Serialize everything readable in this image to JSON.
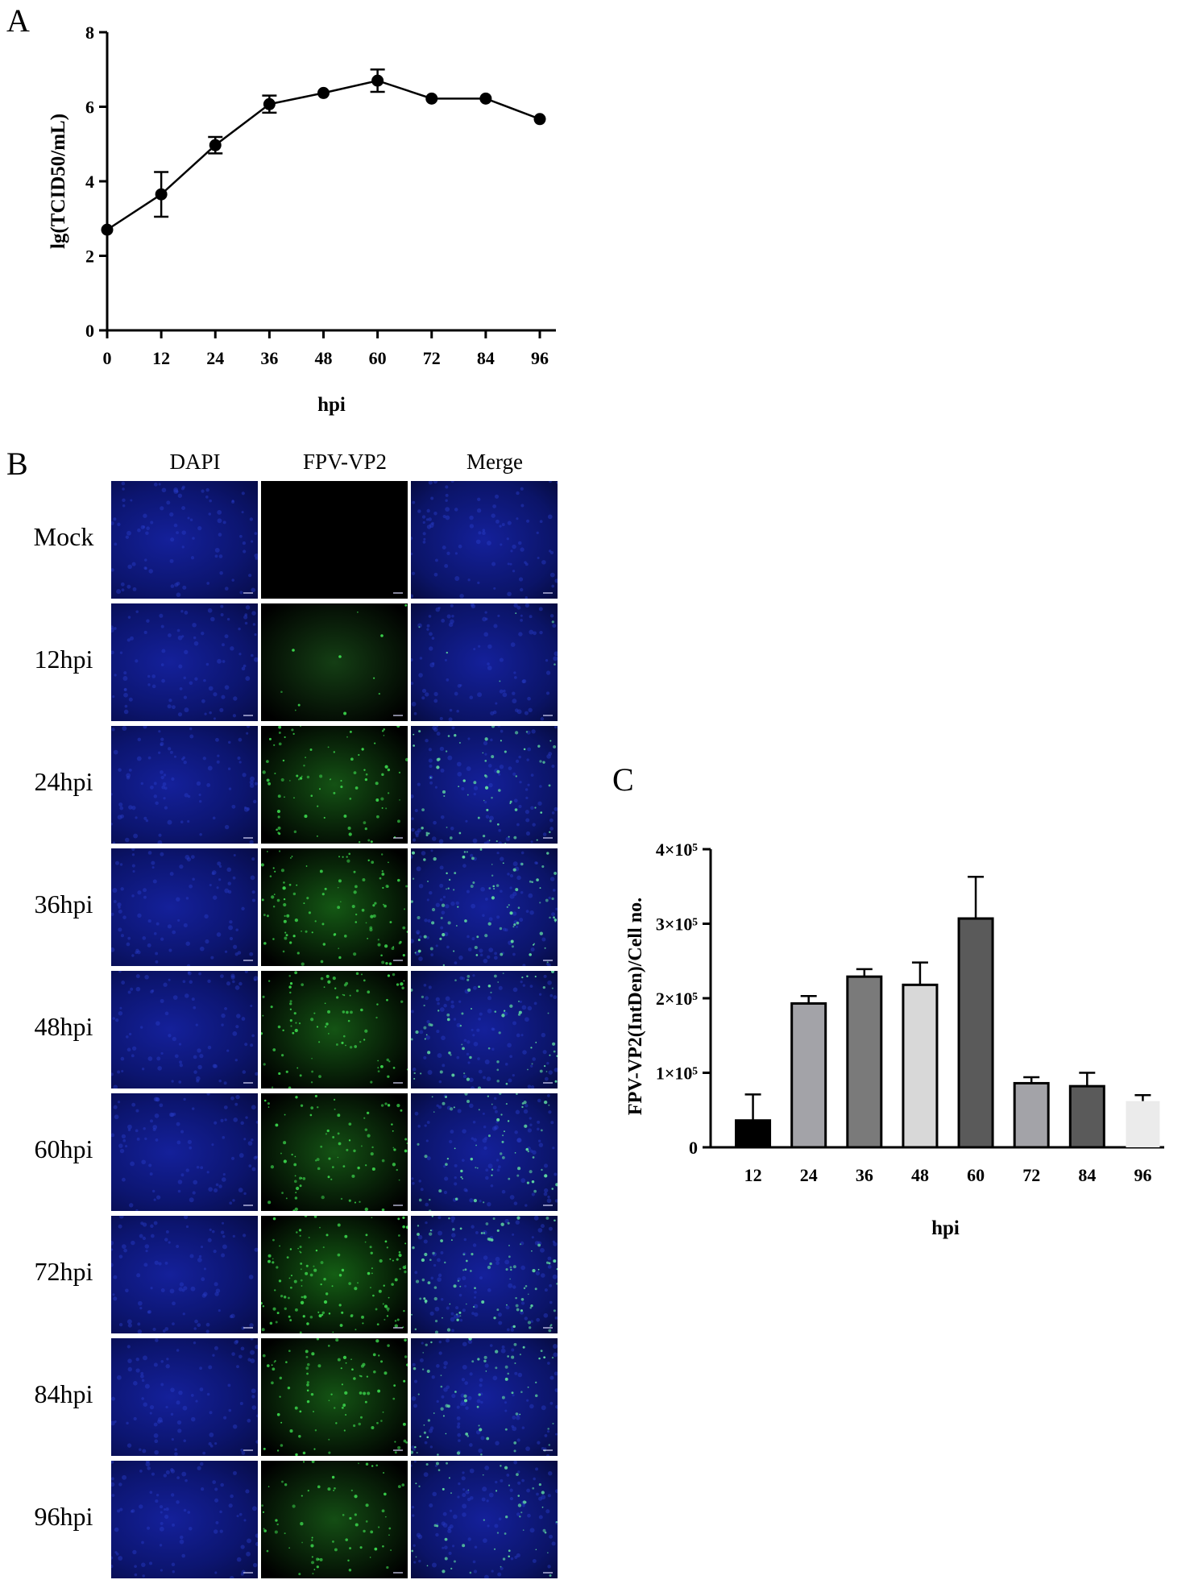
{
  "panels": {
    "a_label": "A",
    "b_label": "B",
    "c_label": "C"
  },
  "microscopy": {
    "columns": [
      "DAPI",
      "FPV-VP2",
      "Merge"
    ],
    "rows": [
      "Mock",
      "12hpi",
      "24hpi",
      "36hpi",
      "48hpi",
      "60hpi",
      "72hpi",
      "84hpi",
      "96hpi"
    ],
    "green_intensity": [
      0,
      0.05,
      0.55,
      0.7,
      0.6,
      0.55,
      0.85,
      0.6,
      0.45
    ],
    "colors": {
      "dapi": "#10187a",
      "vp2": "#3ad14a",
      "background": "#000000"
    }
  },
  "chart_data": [
    {
      "type": "line",
      "xlabel": "hpi",
      "ylabel": "lg(TCID50/mL)",
      "x": [
        0,
        12,
        24,
        36,
        48,
        60,
        72,
        84,
        96
      ],
      "y": [
        2.7,
        3.65,
        4.97,
        6.07,
        6.37,
        6.7,
        6.22,
        6.22,
        5.67
      ],
      "error": [
        0,
        0.6,
        0.22,
        0.23,
        0.05,
        0.3,
        0.05,
        0.05,
        0.05
      ],
      "xticks": [
        "0",
        "12",
        "24",
        "36",
        "48",
        "60",
        "72",
        "84",
        "96"
      ],
      "yticks": [
        "0",
        "2",
        "4",
        "6",
        "8"
      ],
      "xlim": [
        0,
        96
      ],
      "ylim": [
        0,
        8
      ],
      "grid": false,
      "color": "#000000"
    },
    {
      "type": "bar",
      "xlabel": "hpi",
      "ylabel": "FPV-VP2(IntDen)/Cell no.",
      "categories": [
        "12",
        "24",
        "36",
        "48",
        "60",
        "72",
        "84",
        "96"
      ],
      "values": [
        36000,
        193000,
        229000,
        218000,
        307000,
        86000,
        82000,
        62000
      ],
      "error": [
        35000,
        10000,
        10000,
        30000,
        56000,
        8000,
        18000,
        8000
      ],
      "yticks": [
        "0",
        "1×10⁵",
        "2×10⁵",
        "3×10⁵",
        "4×10⁵"
      ],
      "ylim": [
        0,
        400000
      ],
      "grid": false,
      "bar_colors": [
        "#000000",
        "#a3a3a8",
        "#7a7a7a",
        "#d8d8d8",
        "#5a5a5a",
        "#a3a3a8",
        "#5a5a5a",
        "#ebebeb"
      ]
    }
  ]
}
